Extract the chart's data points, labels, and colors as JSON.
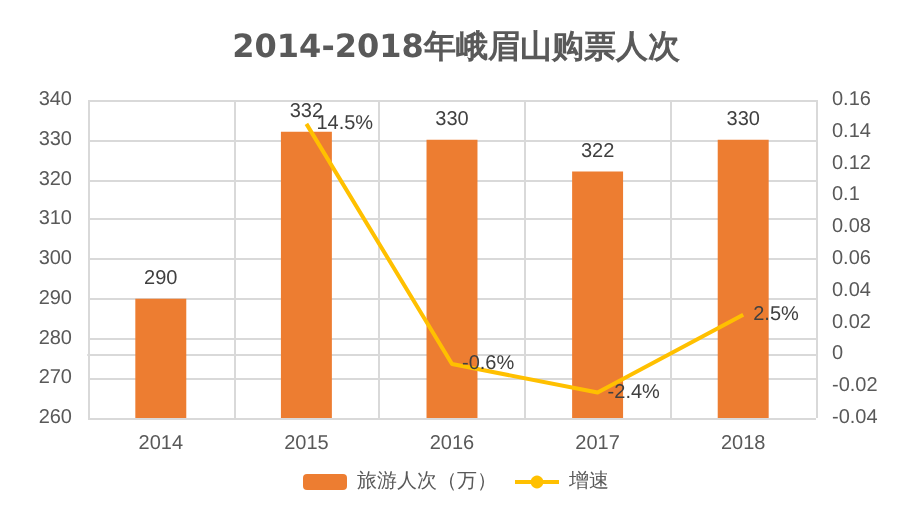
{
  "chart_data": {
    "type": "bar",
    "title": "2014-2018年峨眉山购票人次",
    "categories": [
      "2014",
      "2015",
      "2016",
      "2017",
      "2018"
    ],
    "series": [
      {
        "name": "旅游人次（万）",
        "color": "#ed7d31",
        "values": [
          290,
          332,
          330,
          322,
          330
        ],
        "value_labels": [
          "290",
          "332",
          "330",
          "322",
          "330"
        ]
      },
      {
        "name": "增速",
        "type": "line",
        "axis": "y2",
        "color": "#ffc000",
        "values": [
          null,
          0.145,
          -0.006,
          -0.024,
          0.025
        ],
        "value_labels": [
          null,
          "14.5%",
          "-0.6%",
          "-2.4%",
          "2.5%"
        ]
      }
    ],
    "ylim": [
      260,
      340
    ],
    "yticks": [
      260,
      270,
      280,
      290,
      300,
      310,
      320,
      330,
      340
    ],
    "y2lim": [
      -0.04,
      0.16
    ],
    "y2ticks": [
      -0.04,
      -0.02,
      0,
      0.02,
      0.04,
      0.06,
      0.08,
      0.1,
      0.12,
      0.14,
      0.16
    ],
    "grid": true,
    "legend": "bottom",
    "marker": "none"
  }
}
